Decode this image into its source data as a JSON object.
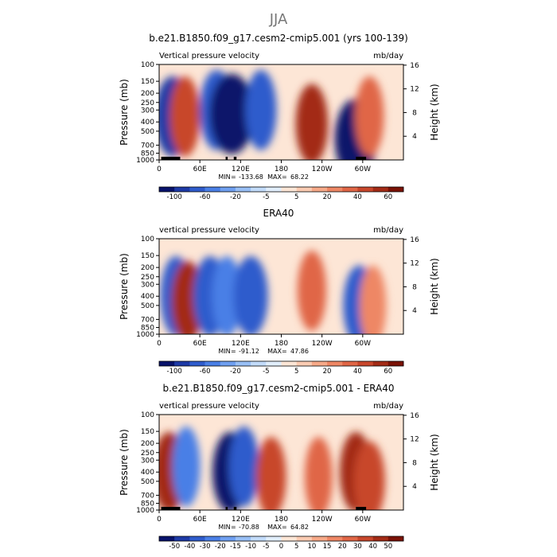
{
  "page": {
    "super_title": "JJA"
  },
  "colors": {
    "neg": [
      "#08136b",
      "#1d3aa6",
      "#2f5ccc",
      "#4a7fe6",
      "#6f9ff0",
      "#98bff5",
      "#c2dbfa",
      "#e1eefc"
    ],
    "pos": [
      "#fde6d6",
      "#fbcbb2",
      "#f6a988",
      "#ee8765",
      "#e06646",
      "#c8472c",
      "#a32b16",
      "#7a1206"
    ],
    "land": "#000000"
  },
  "chart_data": [
    {
      "type": "heatmap",
      "title": "b.e21.B1850.f09_g17.cesm2-cmip5.001 (yrs 100-139)",
      "left_label": "Vertical pressure velocity",
      "right_label": "mb/day",
      "xlabel": "",
      "ylabel": "Pressure (mb)",
      "ylabel_right": "Height (km)",
      "x_ticks": [
        "0",
        "60E",
        "120E",
        "180",
        "120W",
        "60W"
      ],
      "x_tick_values": [
        0,
        60,
        120,
        180,
        240,
        300
      ],
      "xlim": [
        0,
        360
      ],
      "y_ticks": [
        "100",
        "150",
        "200",
        "250",
        "300",
        "400",
        "500",
        "700",
        "850",
        "1000"
      ],
      "y_tick_values": [
        100,
        150,
        200,
        250,
        300,
        400,
        500,
        700,
        850,
        1000
      ],
      "ylim": [
        100,
        1000
      ],
      "yscale": "log",
      "y_right_ticks": [
        "4",
        "8",
        "12",
        "16"
      ],
      "y_right_values": [
        4,
        8,
        12,
        16
      ],
      "stats": {
        "min_label": "MIN",
        "min": "-133.68",
        "max_label": "MAX",
        "max": "68.22"
      },
      "colorbar_labels": [
        "-100",
        "-60",
        "-20",
        "-5",
        "5",
        "20",
        "40",
        "60"
      ],
      "colorbar_levels": [
        -100,
        -80,
        -60,
        -40,
        -20,
        -10,
        -5,
        -2,
        0,
        2,
        5,
        10,
        20,
        30,
        40,
        50,
        60
      ],
      "field": [
        {
          "lon": 20,
          "p": 350,
          "value": -60
        },
        {
          "lon": 38,
          "p": 350,
          "value": 35
        },
        {
          "lon": 85,
          "p": 300,
          "value": -55
        },
        {
          "lon": 107,
          "p": 330,
          "value": -120
        },
        {
          "lon": 150,
          "p": 300,
          "value": -40
        },
        {
          "lon": 225,
          "p": 420,
          "value": 45
        },
        {
          "lon": 290,
          "p": 600,
          "value": -90
        },
        {
          "lon": 310,
          "p": 350,
          "value": 30
        }
      ],
      "terrain": [
        {
          "lon0": 3,
          "lon1": 30
        },
        {
          "lon0": 25,
          "lon1": 31
        },
        {
          "lon0": 98,
          "lon1": 101
        },
        {
          "lon0": 110,
          "lon1": 114
        },
        {
          "lon0": 290,
          "lon1": 305
        }
      ]
    },
    {
      "type": "heatmap",
      "title": "ERA40",
      "left_label": "vertical pressure velocity",
      "right_label": "mb/day",
      "xlabel": "",
      "ylabel": "Pressure (mb)",
      "ylabel_right": "Height (km)",
      "x_ticks": [
        "0",
        "60E",
        "120E",
        "180",
        "120W",
        "60W"
      ],
      "x_tick_values": [
        0,
        60,
        120,
        180,
        240,
        300
      ],
      "xlim": [
        0,
        360
      ],
      "y_ticks": [
        "100",
        "150",
        "200",
        "250",
        "300",
        "400",
        "500",
        "700",
        "850",
        "1000"
      ],
      "y_tick_values": [
        100,
        150,
        200,
        250,
        300,
        400,
        500,
        700,
        850,
        1000
      ],
      "ylim": [
        100,
        1000
      ],
      "yscale": "log",
      "y_right_ticks": [
        "4",
        "8",
        "12",
        "16"
      ],
      "y_right_values": [
        4,
        8,
        12,
        16
      ],
      "stats": {
        "min_label": "MIN",
        "min": "-91.12",
        "max_label": "MAX",
        "max": "47.86"
      },
      "colorbar_labels": [
        "-100",
        "-60",
        "-20",
        "-5",
        "5",
        "20",
        "40",
        "60"
      ],
      "colorbar_levels": [
        -100,
        -80,
        -60,
        -40,
        -20,
        -10,
        -5,
        -2,
        0,
        2,
        5,
        10,
        20,
        30,
        40,
        50,
        60
      ],
      "field": [
        {
          "lon": 25,
          "p": 400,
          "value": -40
        },
        {
          "lon": 42,
          "p": 450,
          "value": 45
        },
        {
          "lon": 75,
          "p": 400,
          "value": -50
        },
        {
          "lon": 100,
          "p": 400,
          "value": -35
        },
        {
          "lon": 135,
          "p": 400,
          "value": -55
        },
        {
          "lon": 225,
          "p": 350,
          "value": 30
        },
        {
          "lon": 295,
          "p": 500,
          "value": -45
        },
        {
          "lon": 315,
          "p": 500,
          "value": 20
        }
      ],
      "terrain": []
    },
    {
      "type": "heatmap",
      "title": "b.e21.B1850.f09_g17.cesm2-cmip5.001 - ERA40",
      "left_label": "vertical pressure velocity",
      "right_label": "mb/day",
      "xlabel": "",
      "ylabel": "Pressure (mb)",
      "ylabel_right": "Height (km)",
      "x_ticks": [
        "0",
        "60E",
        "120E",
        "180",
        "120W",
        "60W"
      ],
      "x_tick_values": [
        0,
        60,
        120,
        180,
        240,
        300
      ],
      "xlim": [
        0,
        360
      ],
      "y_ticks": [
        "100",
        "150",
        "200",
        "250",
        "300",
        "400",
        "500",
        "700",
        "850",
        "1000"
      ],
      "y_tick_values": [
        100,
        150,
        200,
        250,
        300,
        400,
        500,
        700,
        850,
        1000
      ],
      "ylim": [
        100,
        1000
      ],
      "yscale": "log",
      "y_right_ticks": [
        "4",
        "8",
        "12",
        "16"
      ],
      "y_right_values": [
        4,
        8,
        12,
        16
      ],
      "stats": {
        "min_label": "MIN",
        "min": "-70.88",
        "max_label": "MAX",
        "max": "64.82"
      },
      "colorbar_labels": [
        "-50",
        "-40",
        "-30",
        "-20",
        "-15",
        "-10",
        "-5",
        "0",
        "5",
        "10",
        "15",
        "20",
        "30",
        "40",
        "50"
      ],
      "colorbar_levels": [
        -60,
        -50,
        -40,
        -30,
        -20,
        -15,
        -10,
        -5,
        0,
        5,
        10,
        15,
        20,
        30,
        40,
        50,
        60
      ],
      "field": [
        {
          "lon": 15,
          "p": 400,
          "value": 50
        },
        {
          "lon": 40,
          "p": 350,
          "value": -25
        },
        {
          "lon": 105,
          "p": 400,
          "value": -60
        },
        {
          "lon": 125,
          "p": 350,
          "value": -35
        },
        {
          "lon": 165,
          "p": 450,
          "value": 35
        },
        {
          "lon": 235,
          "p": 450,
          "value": 25
        },
        {
          "lon": 290,
          "p": 400,
          "value": 45
        },
        {
          "lon": 310,
          "p": 500,
          "value": 40
        }
      ],
      "terrain": [
        {
          "lon0": 3,
          "lon1": 30
        },
        {
          "lon0": 25,
          "lon1": 31
        },
        {
          "lon0": 98,
          "lon1": 101
        },
        {
          "lon0": 110,
          "lon1": 114
        },
        {
          "lon0": 290,
          "lon1": 305
        }
      ]
    }
  ]
}
